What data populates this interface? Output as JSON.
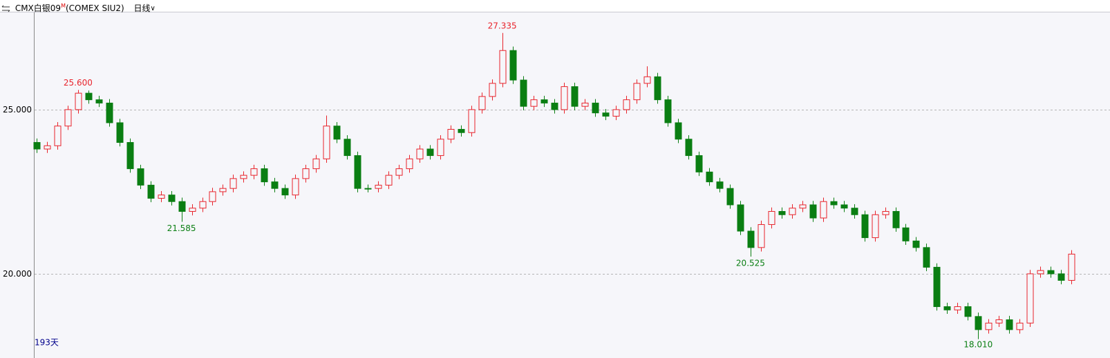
{
  "header": {
    "symbol": "CMX白银09",
    "flag": "M",
    "code": "(COMEX SIU2)",
    "period": "日线"
  },
  "chart_data": {
    "type": "candlestick",
    "footer": "193天",
    "ylim": [
      17.73,
      27.96
    ],
    "yticks": [
      {
        "value": 20,
        "label": "20.000"
      },
      {
        "value": 25,
        "label": "25.000"
      }
    ],
    "grid": true,
    "up_color": "#e8232b",
    "down_color": "#0a7e12",
    "series": {
      "open": [
        24.0,
        23.8,
        23.9,
        24.5,
        25.0,
        25.5,
        25.3,
        25.2,
        24.6,
        24.0,
        23.2,
        22.7,
        22.3,
        22.4,
        22.2,
        21.9,
        22.0,
        22.2,
        22.5,
        22.6,
        22.9,
        23.0,
        23.2,
        22.8,
        22.6,
        22.4,
        22.9,
        23.2,
        23.5,
        24.5,
        24.1,
        23.6,
        22.6,
        22.6,
        22.7,
        23.0,
        23.2,
        23.5,
        23.8,
        23.6,
        24.1,
        24.4,
        24.3,
        25.0,
        25.4,
        25.8,
        26.8,
        25.9,
        25.1,
        25.3,
        25.2,
        25.0,
        25.7,
        25.1,
        25.2,
        24.9,
        24.8,
        25.0,
        25.3,
        25.8,
        26.0,
        25.3,
        24.6,
        24.1,
        23.6,
        23.1,
        22.8,
        22.6,
        22.1,
        21.3,
        20.8,
        21.5,
        21.9,
        21.8,
        22.0,
        22.1,
        21.7,
        22.2,
        22.1,
        22.0,
        21.8,
        21.1,
        21.8,
        21.9,
        21.4,
        21.0,
        20.8,
        20.2,
        19.0,
        18.9,
        19.0,
        18.7,
        18.3,
        18.5,
        18.6,
        18.3,
        18.5,
        20.0,
        20.1,
        20.0,
        19.8
      ],
      "high": [
        24.12,
        24.02,
        24.62,
        25.12,
        25.6,
        25.58,
        25.42,
        25.32,
        24.72,
        24.12,
        23.32,
        22.82,
        22.52,
        22.52,
        22.32,
        22.12,
        22.32,
        22.62,
        22.72,
        23.02,
        23.12,
        23.32,
        23.32,
        22.92,
        22.72,
        23.02,
        23.32,
        23.62,
        24.82,
        24.62,
        24.22,
        23.72,
        22.72,
        22.82,
        23.12,
        23.32,
        23.62,
        23.92,
        23.92,
        24.22,
        24.52,
        24.52,
        25.12,
        25.52,
        25.92,
        27.335,
        26.92,
        26.02,
        25.42,
        25.42,
        25.32,
        25.82,
        25.82,
        25.32,
        25.32,
        25.02,
        25.12,
        25.42,
        25.92,
        26.32,
        26.12,
        25.42,
        24.72,
        24.22,
        23.72,
        23.22,
        22.92,
        22.72,
        22.22,
        21.42,
        21.62,
        22.02,
        22.02,
        22.12,
        22.22,
        22.22,
        22.32,
        22.32,
        22.22,
        22.12,
        21.92,
        21.92,
        22.02,
        22.02,
        21.52,
        21.12,
        20.92,
        20.32,
        19.12,
        19.12,
        19.12,
        18.82,
        18.62,
        18.72,
        18.72,
        18.62,
        20.12,
        20.22,
        20.22,
        20.12,
        20.72
      ],
      "low": [
        23.68,
        23.68,
        23.78,
        24.38,
        24.88,
        25.18,
        25.08,
        24.48,
        23.88,
        23.08,
        22.58,
        22.18,
        22.18,
        22.08,
        21.585,
        21.78,
        21.88,
        22.08,
        22.38,
        22.48,
        22.78,
        22.88,
        22.68,
        22.48,
        22.28,
        22.28,
        22.78,
        23.08,
        23.38,
        23.98,
        23.48,
        22.48,
        22.48,
        22.48,
        22.58,
        22.88,
        23.08,
        23.38,
        23.48,
        23.48,
        23.98,
        24.18,
        24.18,
        24.88,
        25.28,
        25.68,
        25.78,
        24.98,
        24.98,
        25.08,
        24.88,
        24.88,
        24.98,
        24.98,
        24.78,
        24.68,
        24.68,
        24.88,
        25.18,
        25.68,
        25.18,
        24.48,
        23.98,
        23.48,
        22.98,
        22.68,
        22.48,
        21.98,
        21.18,
        20.525,
        20.68,
        21.38,
        21.68,
        21.68,
        21.88,
        21.58,
        21.58,
        21.98,
        21.88,
        21.68,
        20.98,
        20.98,
        21.68,
        21.28,
        20.88,
        20.68,
        20.08,
        18.88,
        18.78,
        18.78,
        18.58,
        18.01,
        18.18,
        18.38,
        18.18,
        18.18,
        18.38,
        19.88,
        19.88,
        19.68,
        19.68
      ],
      "close": [
        23.8,
        23.9,
        24.5,
        25.0,
        25.5,
        25.3,
        25.2,
        24.6,
        24.0,
        23.2,
        22.7,
        22.3,
        22.4,
        22.2,
        21.9,
        22.0,
        22.2,
        22.5,
        22.6,
        22.9,
        23.0,
        23.2,
        22.8,
        22.6,
        22.4,
        22.9,
        23.2,
        23.5,
        24.5,
        24.1,
        23.6,
        22.6,
        22.6,
        22.7,
        23.0,
        23.2,
        23.5,
        23.8,
        23.6,
        24.1,
        24.4,
        24.3,
        25.0,
        25.4,
        25.8,
        26.8,
        25.9,
        25.1,
        25.3,
        25.2,
        25.0,
        25.7,
        25.1,
        25.2,
        24.9,
        24.8,
        25.0,
        25.3,
        25.8,
        26.0,
        25.3,
        24.6,
        24.1,
        23.6,
        23.1,
        22.8,
        22.6,
        22.1,
        21.3,
        20.8,
        21.5,
        21.9,
        21.8,
        22.0,
        22.1,
        21.7,
        22.2,
        22.1,
        22.0,
        21.8,
        21.1,
        21.8,
        21.9,
        21.4,
        21.0,
        20.8,
        20.2,
        19.0,
        18.9,
        19.0,
        18.7,
        18.3,
        18.5,
        18.6,
        18.3,
        18.5,
        20.0,
        20.1,
        20.0,
        19.8,
        20.6
      ]
    },
    "max_labels": [
      {
        "value": 25.6,
        "label": "25.600"
      },
      {
        "value": 27.335,
        "label": "27.335"
      }
    ],
    "min_labels": [
      {
        "value": 21.585,
        "label": "21.585"
      },
      {
        "value": 20.525,
        "label": "20.525"
      },
      {
        "value": 18.01,
        "label": "18.010"
      }
    ]
  }
}
